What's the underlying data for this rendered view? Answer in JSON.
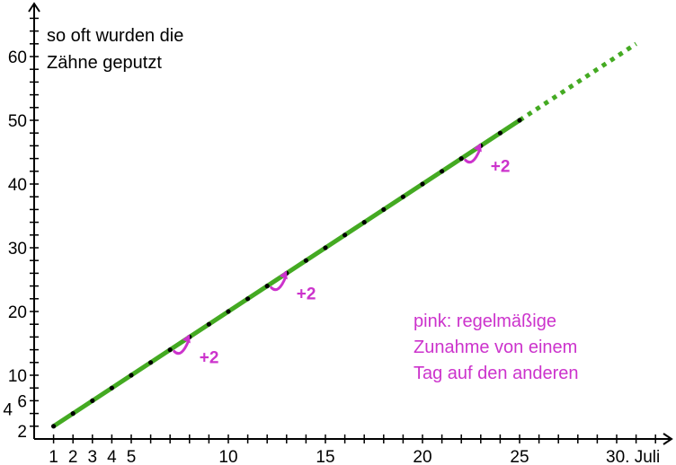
{
  "chart_data": {
    "type": "line",
    "ylabel_lines": [
      "so oft wurden die",
      "Zähne geputzt"
    ],
    "x_ticks": [
      {
        "value": 1,
        "label": "1"
      },
      {
        "value": 2,
        "label": "2"
      },
      {
        "value": 3,
        "label": "3"
      },
      {
        "value": 4,
        "label": "4"
      },
      {
        "value": 5,
        "label": "5"
      },
      {
        "value": 10,
        "label": "10"
      },
      {
        "value": 15,
        "label": "15"
      },
      {
        "value": 20,
        "label": "20"
      },
      {
        "value": 25,
        "label": "25"
      },
      {
        "value": 30,
        "label": "30. Juli"
      }
    ],
    "y_ticks": [
      {
        "value": 2,
        "label": "2"
      },
      {
        "value": 4,
        "label": "4"
      },
      {
        "value": 6,
        "label": "6"
      },
      {
        "value": 10,
        "label": "10"
      },
      {
        "value": 20,
        "label": "20"
      },
      {
        "value": 30,
        "label": "30"
      },
      {
        "value": 40,
        "label": "40"
      },
      {
        "value": 50,
        "label": "50"
      },
      {
        "value": 60,
        "label": "60"
      }
    ],
    "xlim": [
      0,
      32
    ],
    "ylim": [
      0,
      66
    ],
    "series": [
      {
        "color": "#44aa22",
        "solid": {
          "x_start": 1,
          "y_start": 2,
          "x_end": 25,
          "y_end": 50
        },
        "dotted": {
          "x_start": 25,
          "y_start": 50,
          "x_end": 31,
          "y_end": 62
        },
        "points": [
          [
            1,
            2
          ],
          [
            2,
            4
          ],
          [
            3,
            6
          ],
          [
            4,
            8
          ],
          [
            5,
            10
          ],
          [
            6,
            12
          ],
          [
            7,
            14
          ],
          [
            8,
            16
          ],
          [
            9,
            18
          ],
          [
            10,
            20
          ],
          [
            11,
            22
          ],
          [
            12,
            24
          ],
          [
            13,
            26
          ],
          [
            14,
            28
          ],
          [
            15,
            30
          ],
          [
            16,
            32
          ],
          [
            17,
            34
          ],
          [
            18,
            36
          ],
          [
            19,
            38
          ],
          [
            20,
            40
          ],
          [
            21,
            42
          ],
          [
            22,
            44
          ],
          [
            23,
            46
          ],
          [
            24,
            48
          ],
          [
            25,
            50
          ]
        ]
      }
    ],
    "increments": [
      {
        "x": 8,
        "y": 16,
        "label": "+2"
      },
      {
        "x": 13,
        "y": 26,
        "label": "+2"
      },
      {
        "x": 23,
        "y": 46,
        "label": "+2"
      }
    ],
    "note_lines": [
      "pink: regelmäßige",
      "Zunahme von einem",
      "Tag auf den anderen"
    ],
    "note_color": "#cc33cc",
    "grid": false
  }
}
